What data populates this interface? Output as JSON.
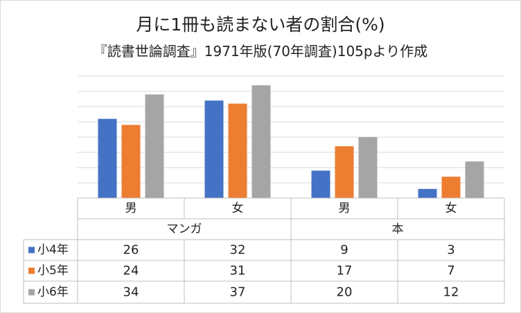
{
  "chart_data": {
    "type": "bar",
    "title": "月に1冊も読まない者の割合(%)",
    "subtitle": "『読書世論調査』1971年版(70年調査)105pより作成",
    "categories": [
      "男",
      "女",
      "男",
      "女"
    ],
    "groups": [
      {
        "label": "マンガ",
        "span": [
          0,
          1
        ]
      },
      {
        "label": "本",
        "span": [
          2,
          3
        ]
      }
    ],
    "series": [
      {
        "name": "小4年",
        "color": "#4472c4",
        "values": [
          26,
          32,
          9,
          3
        ]
      },
      {
        "name": "小5年",
        "color": "#ed7d31",
        "values": [
          24,
          31,
          17,
          7
        ]
      },
      {
        "name": "小6年",
        "color": "#a5a5a5",
        "values": [
          34,
          37,
          20,
          12
        ]
      }
    ],
    "ylim": [
      0,
      40
    ],
    "gridlines": true,
    "gridline_step": 5,
    "data_table": true,
    "legend": "data-table"
  }
}
